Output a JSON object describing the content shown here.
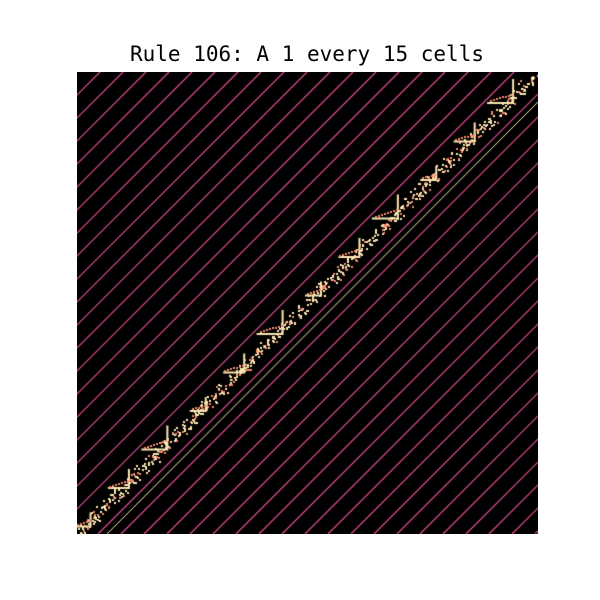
{
  "figure": {
    "title": "Rule 106: A 1 every 15 cells"
  },
  "automaton": {
    "rule": 106,
    "period": 15,
    "colors": {
      "background": "#000000",
      "stripe": "#e8509a",
      "pattern": "#fce7b2",
      "pattern_edge": "#f28a6a"
    }
  }
}
